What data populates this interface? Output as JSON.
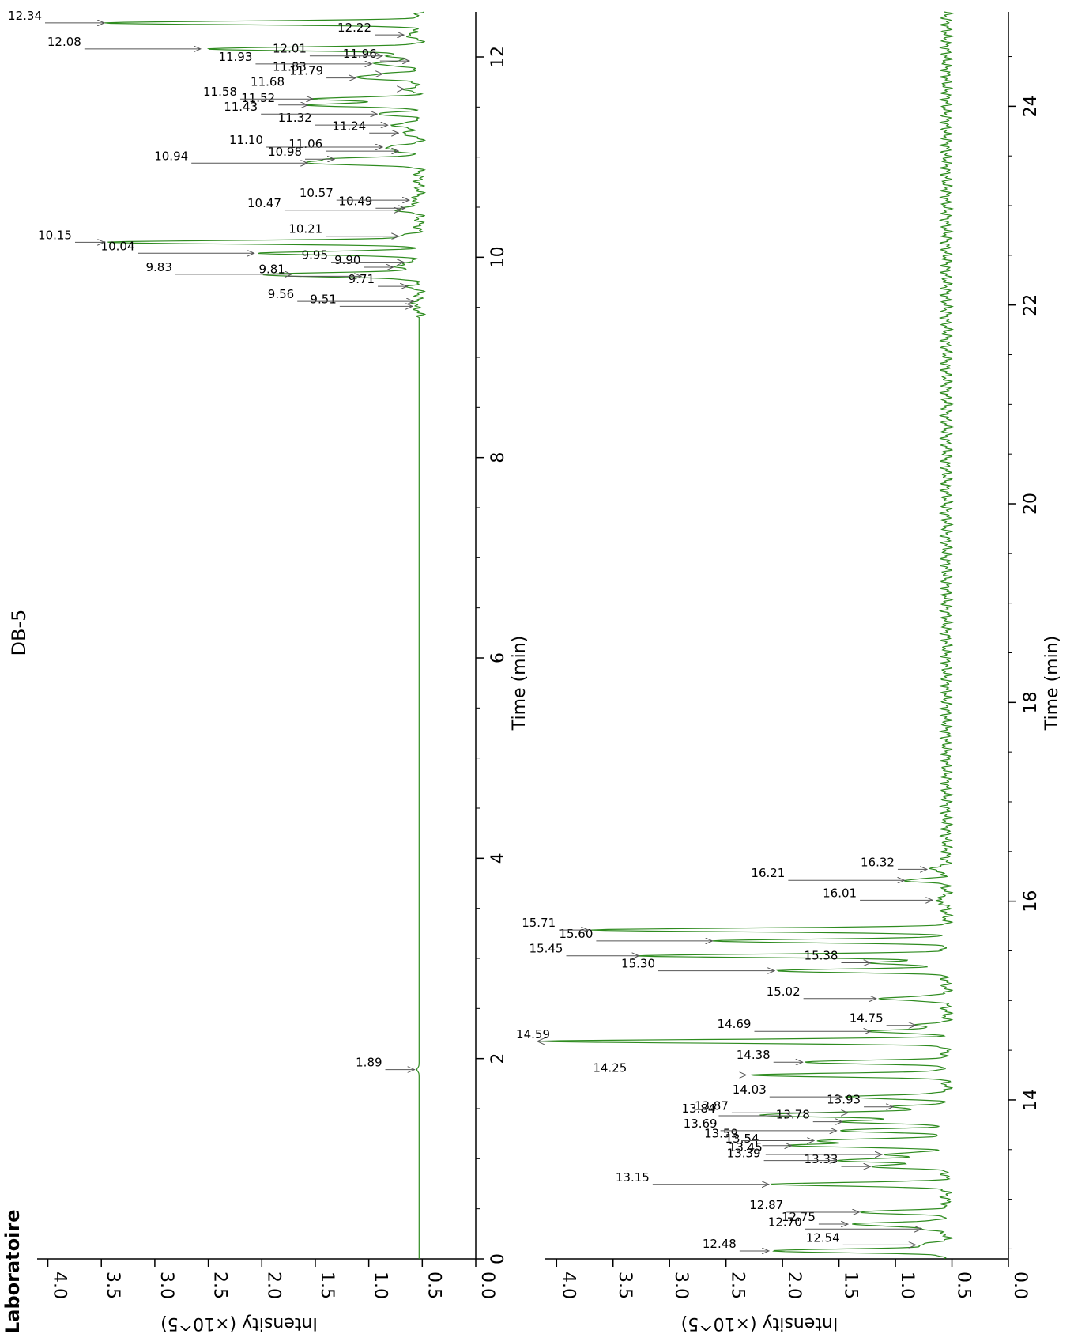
{
  "title": "DB-5",
  "corner_text": "Laboratoire",
  "colors": {
    "trace": "#2e8b1f",
    "arrow": "#555555",
    "axis": "#000000"
  },
  "chart_data": [
    {
      "type": "line",
      "panel": "upper-time-range",
      "xlabel": "Time (min)",
      "ylabel": "Intensity (×10^5)",
      "xlim": [
        0,
        12.45
      ],
      "ylim": [
        0,
        4.1
      ],
      "x_ticks": [
        "0",
        "2",
        "4",
        "6",
        "8",
        "10",
        "12"
      ],
      "x_tick_values": [
        0,
        2,
        4,
        6,
        8,
        10,
        12
      ],
      "y_ticks": [
        "0.0",
        "0.5",
        "1.0",
        "1.5",
        "2.0",
        "2.5",
        "3.0",
        "3.5",
        "4.0"
      ],
      "y_tick_values": [
        0,
        0.5,
        1.0,
        1.5,
        2.0,
        2.5,
        3.0,
        3.5,
        4.0
      ],
      "baseline": 0.53,
      "peaks": [
        {
          "t": 1.89,
          "h": 0.55,
          "label": "1.89"
        },
        {
          "t": 9.51,
          "h": 0.57,
          "label": "9.51"
        },
        {
          "t": 9.56,
          "h": 0.56,
          "label": "9.56"
        },
        {
          "t": 9.71,
          "h": 0.62,
          "label": "9.71"
        },
        {
          "t": 9.81,
          "h": 1.05,
          "label": "9.81"
        },
        {
          "t": 9.83,
          "h": 1.7,
          "label": "9.83"
        },
        {
          "t": 9.9,
          "h": 0.75,
          "label": "9.90"
        },
        {
          "t": 9.95,
          "h": 0.65,
          "label": "9.95"
        },
        {
          "t": 10.04,
          "h": 2.05,
          "label": "10.04"
        },
        {
          "t": 10.15,
          "h": 3.45,
          "label": "10.15"
        },
        {
          "t": 10.21,
          "h": 0.7,
          "label": "10.21"
        },
        {
          "t": 10.47,
          "h": 0.68,
          "label": "10.47"
        },
        {
          "t": 10.49,
          "h": 0.64,
          "label": "10.49"
        },
        {
          "t": 10.57,
          "h": 0.6,
          "label": "10.57"
        },
        {
          "t": 10.94,
          "h": 1.55,
          "label": "10.94"
        },
        {
          "t": 10.98,
          "h": 1.3,
          "label": "10.98"
        },
        {
          "t": 11.06,
          "h": 0.7,
          "label": "11.06"
        },
        {
          "t": 11.1,
          "h": 0.85,
          "label": "11.10"
        },
        {
          "t": 11.24,
          "h": 0.7,
          "label": "11.24"
        },
        {
          "t": 11.32,
          "h": 0.8,
          "label": "11.32"
        },
        {
          "t": 11.43,
          "h": 0.9,
          "label": "11.43"
        },
        {
          "t": 11.52,
          "h": 1.55,
          "label": "11.52"
        },
        {
          "t": 11.58,
          "h": 1.5,
          "label": "11.58"
        },
        {
          "t": 11.68,
          "h": 0.65,
          "label": "11.68"
        },
        {
          "t": 11.79,
          "h": 1.1,
          "label": "11.79"
        },
        {
          "t": 11.83,
          "h": 0.85,
          "label": "11.83"
        },
        {
          "t": 11.93,
          "h": 0.95,
          "label": "11.93"
        },
        {
          "t": 11.96,
          "h": 0.6,
          "label": "11.96"
        },
        {
          "t": 12.01,
          "h": 0.85,
          "label": "12.01"
        },
        {
          "t": 12.08,
          "h": 2.55,
          "label": "12.08"
        },
        {
          "t": 12.22,
          "h": 0.65,
          "label": "12.22"
        },
        {
          "t": 12.34,
          "h": 3.45,
          "label": "12.34"
        }
      ]
    },
    {
      "type": "line",
      "panel": "lower-time-range",
      "xlabel": "Time (min)",
      "ylabel": "Intensity (×10^5)",
      "xlim": [
        12.4,
        24.95
      ],
      "ylim": [
        0,
        4.1
      ],
      "x_ticks": [
        "14",
        "16",
        "18",
        "20",
        "22",
        "24"
      ],
      "x_tick_values": [
        14,
        16,
        18,
        20,
        22,
        24
      ],
      "y_ticks": [
        "0.0",
        "0.5",
        "1.0",
        "1.5",
        "2.0",
        "2.5",
        "3.0",
        "3.5",
        "4.0"
      ],
      "y_tick_values": [
        0,
        0.5,
        1.0,
        1.5,
        2.0,
        2.5,
        3.0,
        3.5,
        4.0
      ],
      "baseline": 0.55,
      "peaks": [
        {
          "t": 12.48,
          "h": 2.1,
          "label": "12.48"
        },
        {
          "t": 12.54,
          "h": 0.8,
          "label": "12.54"
        },
        {
          "t": 12.7,
          "h": 0.75,
          "label": "12.70"
        },
        {
          "t": 12.75,
          "h": 1.4,
          "label": "12.75"
        },
        {
          "t": 12.87,
          "h": 1.3,
          "label": "12.87"
        },
        {
          "t": 13.15,
          "h": 2.1,
          "label": "13.15"
        },
        {
          "t": 13.33,
          "h": 1.2,
          "label": "13.33"
        },
        {
          "t": 13.39,
          "h": 1.5,
          "label": "13.39"
        },
        {
          "t": 13.45,
          "h": 1.1,
          "label": "13.45"
        },
        {
          "t": 13.54,
          "h": 1.9,
          "label": "13.54"
        },
        {
          "t": 13.59,
          "h": 1.7,
          "label": "13.59"
        },
        {
          "t": 13.69,
          "h": 1.5,
          "label": "13.69"
        },
        {
          "t": 13.78,
          "h": 1.45,
          "label": "13.78"
        },
        {
          "t": 13.84,
          "h": 1.9,
          "label": "13.84"
        },
        {
          "t": 13.87,
          "h": 1.4,
          "label": "13.87"
        },
        {
          "t": 13.93,
          "h": 1.0,
          "label": "13.93"
        },
        {
          "t": 14.03,
          "h": 1.45,
          "label": "14.03"
        },
        {
          "t": 14.25,
          "h": 2.3,
          "label": "14.25"
        },
        {
          "t": 14.38,
          "h": 1.8,
          "label": "14.38"
        },
        {
          "t": 14.59,
          "h": 4.15,
          "label": "14.59"
        },
        {
          "t": 14.69,
          "h": 1.2,
          "label": "14.69"
        },
        {
          "t": 14.75,
          "h": 0.8,
          "label": "14.75"
        },
        {
          "t": 15.02,
          "h": 1.15,
          "label": "15.02"
        },
        {
          "t": 15.3,
          "h": 2.05,
          "label": "15.30"
        },
        {
          "t": 15.38,
          "h": 1.2,
          "label": "15.38"
        },
        {
          "t": 15.45,
          "h": 3.25,
          "label": "15.45"
        },
        {
          "t": 15.6,
          "h": 2.6,
          "label": "15.60"
        },
        {
          "t": 15.71,
          "h": 3.7,
          "label": "15.71"
        },
        {
          "t": 16.01,
          "h": 0.65,
          "label": "16.01"
        },
        {
          "t": 16.21,
          "h": 0.9,
          "label": "16.21"
        },
        {
          "t": 16.32,
          "h": 0.7,
          "label": "16.32"
        }
      ]
    }
  ]
}
